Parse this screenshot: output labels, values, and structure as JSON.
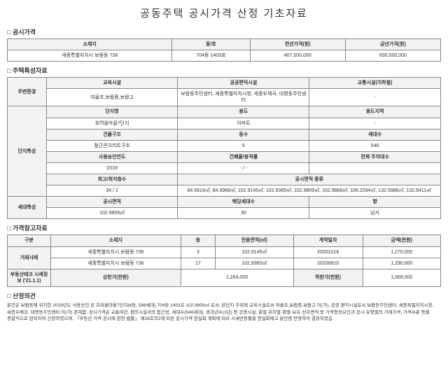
{
  "title": "공동주택 공시가격 산정 기초자료",
  "sections": {
    "s1": "공시가격",
    "s2": "주택특성자료",
    "s3": "가격참고자료",
    "s4": "산정의견"
  },
  "t1": {
    "h": [
      "소재지",
      "동/호",
      "전년가격(원)",
      "금년가격(원)"
    ],
    "r": [
      "세종특별자치시 보람동 738",
      "704동 1403호",
      "407,000,000",
      "935,000,000"
    ]
  },
  "t2": {
    "env": {
      "label": "주변환경",
      "h": [
        "교육시설",
        "공공편익시설",
        "교통시설(지하철)"
      ],
      "v": [
        "여울초,보람중,보람고",
        "보람동주민센터, 세종특별자치시청, 세종우체국, 대평동주민센터",
        "-"
      ]
    },
    "complex": {
      "label": "단지특성",
      "rows": [
        {
          "h": [
            "단지명",
            "용도",
            "용도지역"
          ],
          "v": [
            "호려울마을7단지",
            "아파트",
            "-"
          ]
        },
        {
          "h": [
            "건물구조",
            "동수",
            "세대수"
          ],
          "v": [
            "철근콘크리트구조",
            "6",
            "548"
          ]
        },
        {
          "h": [
            "사용승인연도",
            "건폐율/용적률"
          ],
          "v": [
            "2019",
            "- / -"
          ],
          "h3": "전체 주차대수",
          "v3": ""
        },
        {
          "h": [
            "최고/최저층수"
          ],
          "v": [
            "34  /  2"
          ],
          "h2": "공시면적 종류",
          "v2": "84.9914㎡, 84.9968㎡, 102.9145㎡, 102.9365㎡, 102.9809㎡, 102.9868㎡, 106.2294㎡, 132.5986㎡, 132.6411㎡"
        }
      ]
    },
    "unit": {
      "label": "세대특성",
      "h": [
        "공시면적",
        "해당세대수",
        "향"
      ],
      "v": [
        "102.9809㎡",
        "30",
        "남서"
      ]
    }
  },
  "t3": {
    "head": [
      "구분",
      "소재지",
      "층",
      "전용면적(㎡)",
      "계약일자",
      "금액(천원)"
    ],
    "rows": [
      {
        "label": "거래사례",
        "addr": "세종특별자치시 보람동 738",
        "floor": "3",
        "area": "102.9145㎡",
        "date": "20201018",
        "price": "1,270,000"
      },
      {
        "label": "",
        "addr": "세종특별자치시 보람동 738",
        "floor": "17",
        "area": "102.9365㎡",
        "date": "20200810",
        "price": "1,290,000"
      }
    ],
    "market": {
      "label": "부동산테크 시세정보 ('21.1.1)",
      "upLabel": "상한가(천원)",
      "up": "1,264,000",
      "dnLabel": "하한가(천원)",
      "dn": "1,069,000"
    }
  },
  "opinion": "본건은 보람동에 위치한 2019년도 사용승인 된 호려울마을7단지(6동, 548세대) 704동 1403호 102.9809㎡ 로서, 본단지 주위에 교육시설로서 여울초,보람중,보람고 이(가), 공공 편익시설로서 보람동주민센터, 세종특별자치시청, 세종우체국, 대평동주민센터 이(가) 존재함. 공시가격은 교통여건, 편의시설과의 접근성, 세대수(548세대), 경과년수(2년) 등 공용시설, 층별·위치별·향별·보유·선호면적 등 가격형성요인과 공시·유형별의 거래가격, 가격수준 등을 종합적으로 참작하여 산정하였으며, 「부동산 가격 공시에 관한 법률」 제26조의2에 따른 공시가격 현실화 계획에 따라 시세반등률을 현실화제고 분만큼 반영하여 결정하였음."
}
